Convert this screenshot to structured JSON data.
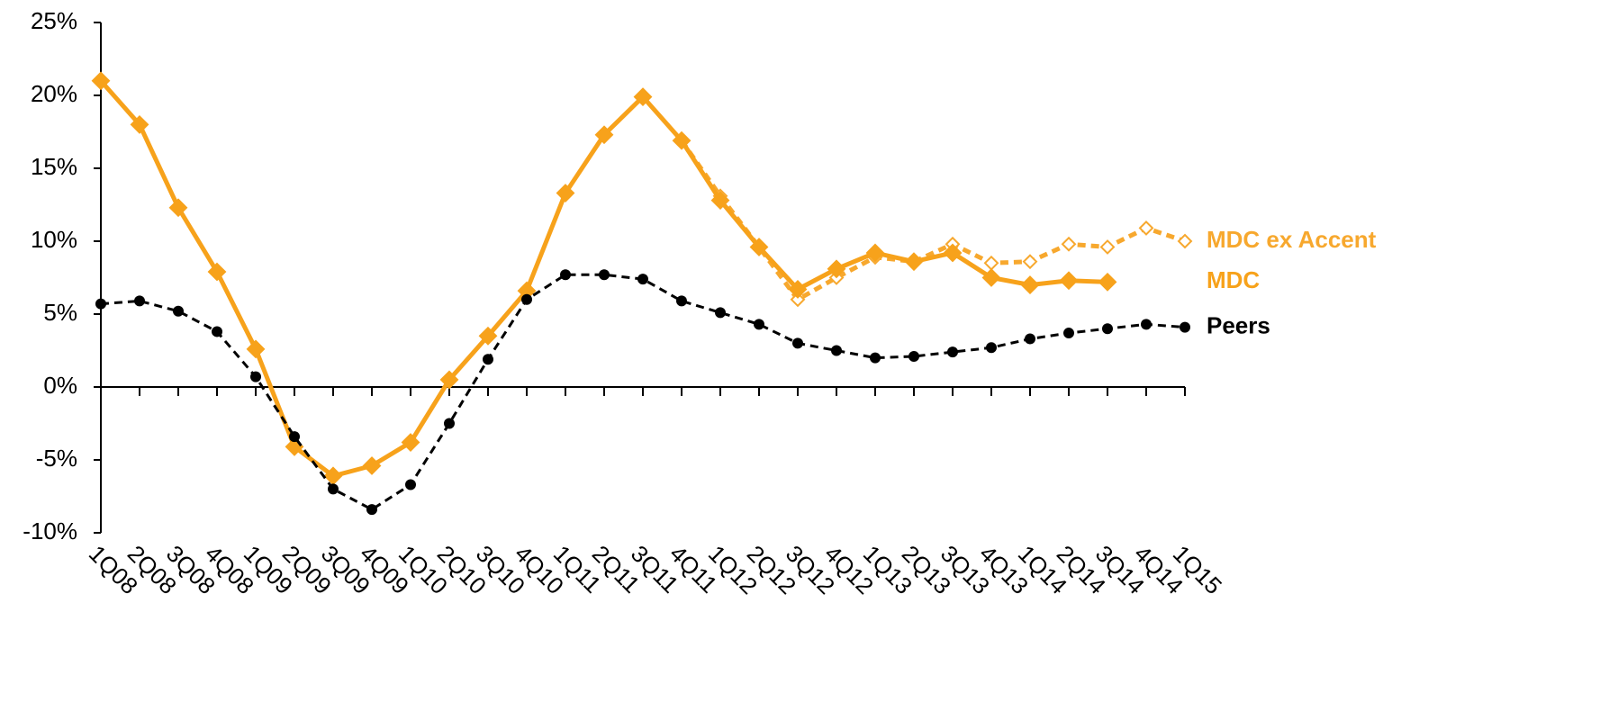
{
  "chart_data": {
    "type": "line",
    "categories": [
      "1Q08",
      "2Q08",
      "3Q08",
      "4Q08",
      "1Q09",
      "2Q09",
      "3Q09",
      "4Q09",
      "1Q10",
      "2Q10",
      "3Q10",
      "4Q10",
      "1Q11",
      "2Q11",
      "3Q11",
      "4Q11",
      "1Q12",
      "2Q12",
      "3Q12",
      "4Q12",
      "1Q13",
      "2Q13",
      "3Q13",
      "4Q13",
      "1Q14",
      "2Q14",
      "3Q14",
      "4Q14",
      "1Q15"
    ],
    "series": [
      {
        "name": "MDC ex Accent",
        "color": "#f7a82e",
        "dashed": true,
        "marker": "open-diamond",
        "values": [
          null,
          null,
          null,
          null,
          null,
          null,
          null,
          null,
          null,
          null,
          null,
          null,
          null,
          null,
          null,
          16.9,
          13.1,
          9.6,
          6.0,
          7.5,
          8.9,
          8.6,
          9.8,
          8.5,
          8.6,
          9.8,
          9.6,
          10.9,
          10.0
        ]
      },
      {
        "name": "MDC",
        "color": "#f7a21b",
        "dashed": false,
        "marker": "diamond",
        "values": [
          21.0,
          18.0,
          12.3,
          7.9,
          2.6,
          -4.1,
          -6.1,
          -5.4,
          -3.8,
          0.5,
          3.5,
          6.6,
          13.3,
          17.3,
          19.9,
          16.9,
          12.8,
          9.6,
          6.7,
          8.1,
          9.2,
          8.6,
          9.2,
          7.5,
          7.0,
          7.3,
          7.2,
          null,
          null
        ]
      },
      {
        "name": "Peers",
        "color": "#000000",
        "dashed": true,
        "marker": "circle",
        "values": [
          5.7,
          5.9,
          5.2,
          3.8,
          0.7,
          -3.4,
          -7.0,
          -8.4,
          -6.7,
          -2.5,
          1.9,
          6.0,
          7.7,
          7.7,
          7.4,
          5.9,
          5.1,
          4.3,
          3.0,
          2.5,
          2.0,
          2.1,
          2.4,
          2.7,
          3.3,
          3.7,
          4.0,
          4.3,
          4.1
        ]
      }
    ],
    "ylim": [
      -10,
      25
    ],
    "yticks": [
      {
        "value": -10,
        "label": "-10%"
      },
      {
        "value": -5,
        "label": "-5%"
      },
      {
        "value": 0,
        "label": "0%"
      },
      {
        "value": 5,
        "label": "5%"
      },
      {
        "value": 10,
        "label": "10%"
      },
      {
        "value": 15,
        "label": "15%"
      },
      {
        "value": 20,
        "label": "20%"
      },
      {
        "value": 25,
        "label": "25%"
      }
    ],
    "grid": false
  }
}
